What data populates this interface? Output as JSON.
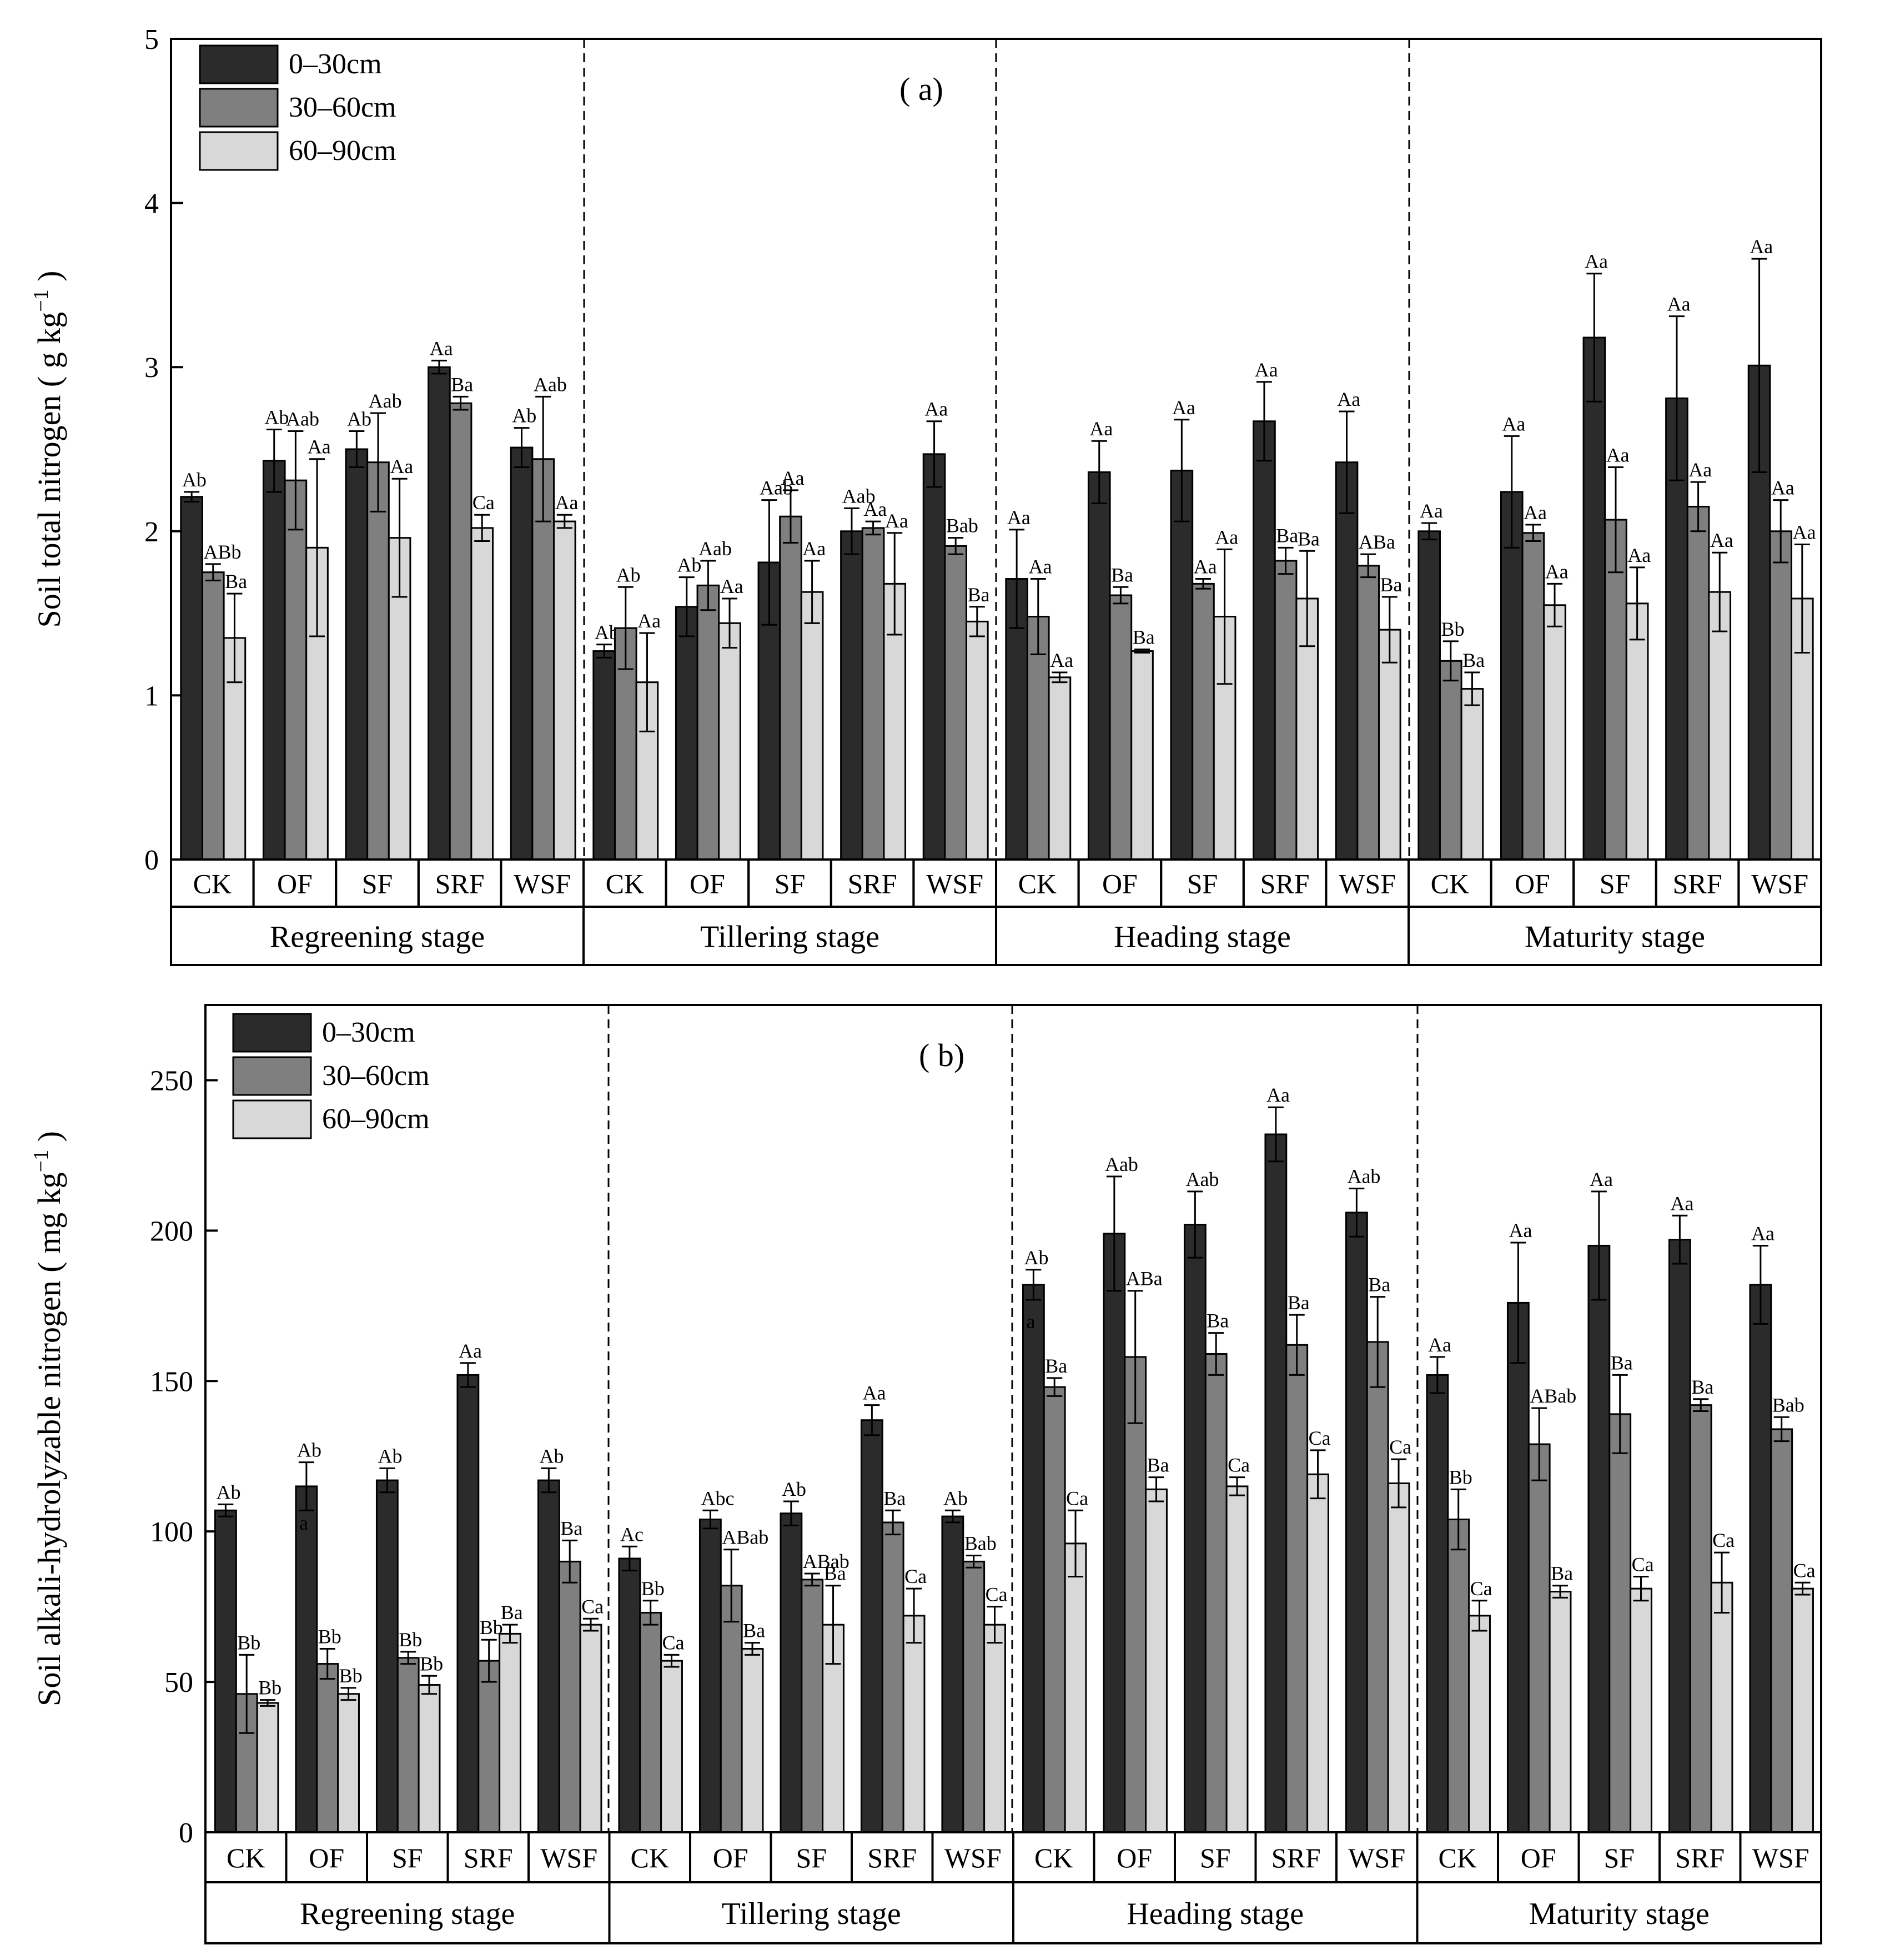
{
  "chart_data": [
    {
      "type": "bar",
      "panel_tag": "( a)",
      "ylabel": "Soil total nitrogen ( g kg",
      "ylabel_sup": "−1",
      "ylabel_close": " )",
      "ylim": [
        0,
        5
      ],
      "yticks": [
        "0",
        "1",
        "2",
        "3",
        "4",
        "5"
      ],
      "legend": [
        "0–30cm",
        "30–60cm",
        "60–90cm"
      ],
      "stages": [
        "Regreening stage",
        "Tillering stage",
        "Heading stage",
        "Maturity stage"
      ],
      "treatments": [
        "CK",
        "OF",
        "SF",
        "SRF",
        "WSF"
      ],
      "values": [
        [
          [
            2.21,
            1.75,
            1.35
          ],
          [
            2.43,
            2.31,
            1.9
          ],
          [
            2.5,
            2.42,
            1.96
          ],
          [
            3.0,
            2.78,
            2.02
          ],
          [
            2.51,
            2.44,
            2.06
          ]
        ],
        [
          [
            1.27,
            1.41,
            1.08
          ],
          [
            1.54,
            1.67,
            1.44
          ],
          [
            1.81,
            2.09,
            1.63
          ],
          [
            2.0,
            2.02,
            1.68
          ],
          [
            2.47,
            1.91,
            1.45
          ]
        ],
        [
          [
            1.71,
            1.48,
            1.11
          ],
          [
            2.36,
            1.61,
            1.27
          ],
          [
            2.37,
            1.68,
            1.48
          ],
          [
            2.67,
            1.82,
            1.59
          ],
          [
            2.42,
            1.79,
            1.4
          ]
        ],
        [
          [
            2.0,
            1.21,
            1.04
          ],
          [
            2.24,
            1.99,
            1.55
          ],
          [
            3.18,
            2.07,
            1.56
          ],
          [
            2.81,
            2.15,
            1.63
          ],
          [
            3.01,
            2.0,
            1.59
          ]
        ]
      ],
      "errors": [
        [
          [
            0.03,
            0.05,
            0.27
          ],
          [
            0.19,
            0.3,
            0.54
          ],
          [
            0.11,
            0.3,
            0.36
          ],
          [
            0.04,
            0.04,
            0.08
          ],
          [
            0.12,
            0.38,
            0.04
          ]
        ],
        [
          [
            0.04,
            0.25,
            0.3
          ],
          [
            0.18,
            0.15,
            0.15
          ],
          [
            0.38,
            0.16,
            0.19
          ],
          [
            0.14,
            0.04,
            0.31
          ],
          [
            0.2,
            0.05,
            0.09
          ]
        ],
        [
          [
            0.3,
            0.23,
            0.03
          ],
          [
            0.19,
            0.05,
            0.01
          ],
          [
            0.31,
            0.03,
            0.41
          ],
          [
            0.24,
            0.08,
            0.29
          ],
          [
            0.31,
            0.07,
            0.2
          ]
        ],
        [
          [
            0.05,
            0.12,
            0.1
          ],
          [
            0.34,
            0.05,
            0.13
          ],
          [
            0.39,
            0.32,
            0.22
          ],
          [
            0.5,
            0.15,
            0.24
          ],
          [
            0.65,
            0.19,
            0.33
          ]
        ]
      ],
      "labels": [
        [
          [
            "Ab",
            "ABb",
            "Ba"
          ],
          [
            "Ab",
            "Aab",
            "Aa"
          ],
          [
            "Ab",
            "Aab",
            "Aa"
          ],
          [
            "Aa",
            "Ba",
            "Ca"
          ],
          [
            "Ab",
            "Aab",
            "Aa"
          ]
        ],
        [
          [
            "Ab",
            "Ab",
            "Aa"
          ],
          [
            "Ab",
            "Aab",
            "Aa"
          ],
          [
            "Aab",
            "Aa",
            "Aa"
          ],
          [
            "Aab",
            "Aa",
            "Aa"
          ],
          [
            "Aa",
            "Bab",
            "Ba"
          ]
        ],
        [
          [
            "Aa",
            "Aa",
            "Aa"
          ],
          [
            "Aa",
            "Ba",
            "Ba"
          ],
          [
            "Aa",
            "Aa",
            "Aa"
          ],
          [
            "Aa",
            "Ba",
            "Ba"
          ],
          [
            "Aa",
            "ABa",
            "Ba"
          ]
        ],
        [
          [
            "Aa",
            "Bb",
            "Ba"
          ],
          [
            "Aa",
            "Aa",
            "Aa"
          ],
          [
            "Aa",
            "Aa",
            "Aa"
          ],
          [
            "Aa",
            "Aa",
            "Aa"
          ],
          [
            "Aa",
            "Aa",
            "Aa"
          ]
        ]
      ]
    },
    {
      "type": "bar",
      "panel_tag": "( b)",
      "ylabel": "Soil alkali-hydrolyzable nitrogen ( mg kg",
      "ylabel_sup": "−1",
      "ylabel_close": " )",
      "ylim": [
        0,
        275
      ],
      "yticks": [
        "0",
        "50",
        "100",
        "150",
        "200",
        "250"
      ],
      "legend": [
        "0–30cm",
        "30–60cm",
        "60–90cm"
      ],
      "stages": [
        "Regreening stage",
        "Tillering stage",
        "Heading stage",
        "Maturity stage"
      ],
      "treatments": [
        "CK",
        "OF",
        "SF",
        "SRF",
        "WSF"
      ],
      "values": [
        [
          [
            107,
            46,
            43
          ],
          [
            115,
            56,
            46
          ],
          [
            117,
            58,
            49
          ],
          [
            152,
            57,
            66
          ],
          [
            117,
            90,
            69
          ]
        ],
        [
          [
            91,
            73,
            57
          ],
          [
            104,
            82,
            61
          ],
          [
            106,
            84,
            69
          ],
          [
            137,
            103,
            72
          ],
          [
            105,
            90,
            69
          ]
        ],
        [
          [
            182,
            148,
            96
          ],
          [
            199,
            158,
            114
          ],
          [
            202,
            159,
            115
          ],
          [
            232,
            162,
            119
          ],
          [
            206,
            163,
            116
          ]
        ],
        [
          [
            152,
            104,
            72
          ],
          [
            176,
            129,
            80
          ],
          [
            195,
            139,
            81
          ],
          [
            197,
            142,
            83
          ],
          [
            182,
            134,
            81
          ]
        ]
      ],
      "errors": [
        [
          [
            2,
            13,
            1
          ],
          [
            8,
            5,
            2
          ],
          [
            4,
            2,
            3
          ],
          [
            4,
            7,
            3
          ],
          [
            4,
            7,
            2
          ]
        ],
        [
          [
            4,
            4,
            2
          ],
          [
            3,
            12,
            2
          ],
          [
            4,
            2,
            13
          ],
          [
            5,
            4,
            9
          ],
          [
            2,
            2,
            6
          ]
        ],
        [
          [
            5,
            3,
            11
          ],
          [
            19,
            22,
            4
          ],
          [
            11,
            7,
            3
          ],
          [
            9,
            10,
            8
          ],
          [
            8,
            15,
            8
          ]
        ],
        [
          [
            6,
            10,
            5
          ],
          [
            20,
            12,
            2
          ],
          [
            18,
            13,
            4
          ],
          [
            8,
            2,
            10
          ],
          [
            13,
            4,
            2
          ]
        ]
      ],
      "labels": [
        [
          [
            "Ab",
            "Bb",
            "Bb"
          ],
          [
            "Ab",
            "Bb",
            "Bb"
          ],
          [
            "Ab",
            "Bb",
            "Bb"
          ],
          [
            "Aa",
            "Bb",
            "Ba"
          ],
          [
            "Ab",
            "Ba",
            "Ca"
          ]
        ],
        [
          [
            "Ac",
            "Bb",
            "Ca"
          ],
          [
            "Abc",
            "ABab",
            "Ba"
          ],
          [
            "Ab",
            "ABab",
            "Ba"
          ],
          [
            "Aa",
            "Ba",
            "Ca"
          ],
          [
            "Ab",
            "Bab",
            "Ca"
          ]
        ],
        [
          [
            "Ab",
            "Ba",
            "Ca"
          ],
          [
            "Aab",
            "ABa",
            "Ba"
          ],
          [
            "Aab",
            "Ba",
            "Ca"
          ],
          [
            "Aa",
            "Ba",
            "Ca"
          ],
          [
            "Aab",
            "Ba",
            "Ca"
          ]
        ],
        [
          [
            "Aa",
            "Bb",
            "Ca"
          ],
          [
            "Aa",
            "ABab",
            "Ba"
          ],
          [
            "Aa",
            "Ba",
            "Ca"
          ],
          [
            "Aa",
            "Ba",
            "Ca"
          ],
          [
            "Aa",
            "Bab",
            "Ca"
          ]
        ]
      ],
      "extra_marks": [
        {
          "stage": 0,
          "treatment": 1,
          "depth": 0,
          "text": "a"
        },
        {
          "stage": 2,
          "treatment": 0,
          "depth": 0,
          "text": "a"
        }
      ]
    }
  ],
  "colors": {
    "depth_0_30": "#2b2b2b",
    "depth_30_60": "#7f7f7f",
    "depth_60_90": "#d8d8d8",
    "axis": "#000000"
  }
}
